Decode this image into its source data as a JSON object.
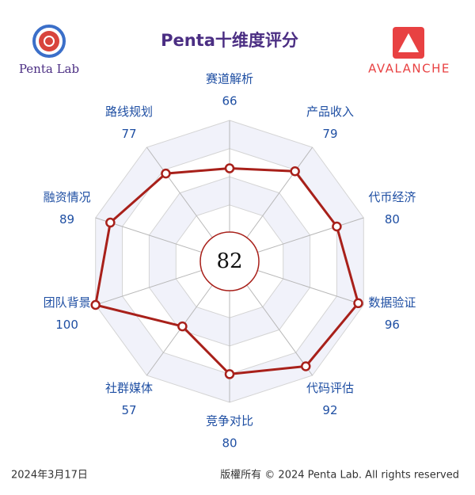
{
  "chart_data": {
    "type": "radar",
    "title": "Penta十维度评分",
    "brand": "Penta Lab",
    "partner": "AVALANCHE",
    "score": 82,
    "date": "2024年3月17日",
    "copyright": "版權所有 © 2024 Penta Lab. All rights reserved",
    "categories": [
      "赛道解析",
      "产品收入",
      "代币经济",
      "数据验证",
      "代码评估",
      "竞争对比",
      "社群媒体",
      "团队背景",
      "融资情况",
      "路线规划"
    ],
    "values": [
      66,
      79,
      80,
      96,
      92,
      80,
      57,
      100,
      89,
      77
    ],
    "color": "#a8201a",
    "rlim": [
      0,
      100
    ],
    "rticks": [
      20,
      40,
      60,
      80,
      100
    ],
    "grid": true
  }
}
